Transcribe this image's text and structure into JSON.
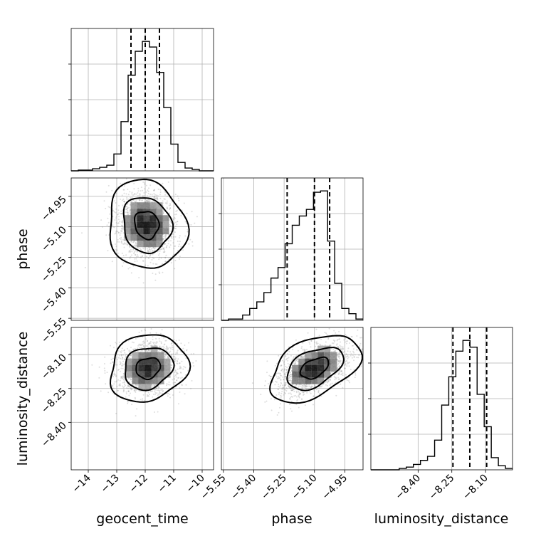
{
  "chart_data": {
    "type": "corner",
    "parameters": [
      "geocent_time",
      "phase",
      "luminosity_distance"
    ],
    "ranges": {
      "geocent_time": [
        -14.6,
        -9.6
      ],
      "phase": [
        -5.56,
        -4.86
      ],
      "luminosity_distance": [
        -8.61,
        -7.98
      ]
    },
    "ticks": {
      "geocent_time": {
        "values": [
          -14,
          -13,
          -12,
          -11,
          -10
        ],
        "labels": [
          "−14",
          "−13",
          "−12",
          "−11",
          "−10"
        ]
      },
      "phase_x": {
        "values": [
          -5.55,
          -5.4,
          -5.25,
          -5.1,
          -4.95
        ],
        "labels": [
          "−5.55",
          "−5.40",
          "−5.25",
          "−5.10",
          "−4.95"
        ]
      },
      "phase_y": {
        "values": [
          -4.95,
          -5.1,
          -5.25,
          -5.4,
          -5.55
        ],
        "labels": [
          "−4.95",
          "−5.10",
          "−5.25",
          "−5.40",
          "−5.55"
        ]
      },
      "luminosity_distance_x": {
        "values": [
          -8.4,
          -8.25,
          -8.1
        ],
        "labels": [
          "−8.40",
          "−8.25",
          "−8.10"
        ]
      },
      "luminosity_distance_y": {
        "values": [
          -8.1,
          -8.25,
          -8.4
        ],
        "labels": [
          "−8.10",
          "−8.25",
          "−8.40"
        ]
      }
    },
    "histograms": [
      {
        "parameter": "geocent_time",
        "bin_edges": [
          -14.6,
          -14.35,
          -14.1,
          -13.85,
          -13.6,
          -13.35,
          -13.1,
          -12.85,
          -12.6,
          -12.35,
          -12.1,
          -11.85,
          -11.6,
          -11.35,
          -11.1,
          -10.85,
          -10.6,
          -10.35,
          -10.1,
          -9.85,
          -9.6
        ],
        "counts": [
          0,
          0.5,
          0.5,
          1.5,
          2.5,
          4,
          12,
          35,
          68,
          85,
          92,
          88,
          70,
          45,
          19,
          6,
          2,
          1,
          0,
          0
        ],
        "quantiles": [
          -12.5,
          -12.0,
          -11.5
        ]
      },
      {
        "parameter": "phase",
        "bin_edges": [
          -5.56,
          -5.525,
          -5.49,
          -5.455,
          -5.42,
          -5.385,
          -5.35,
          -5.315,
          -5.28,
          -5.245,
          -5.21,
          -5.175,
          -5.14,
          -5.105,
          -5.07,
          -5.035,
          -5.0,
          -4.965,
          -4.93,
          -4.895,
          -4.86
        ],
        "counts": [
          0,
          1,
          1,
          4,
          9,
          14,
          21,
          32,
          40,
          58,
          72,
          79,
          84,
          97,
          98,
          60,
          28,
          9,
          5,
          1
        ],
        "quantiles": [
          -5.235,
          -5.1,
          -5.025
        ]
      },
      {
        "parameter": "luminosity_distance",
        "bin_edges": [
          -8.61,
          -8.5785,
          -8.547,
          -8.5155,
          -8.484,
          -8.4525,
          -8.421,
          -8.3895,
          -8.358,
          -8.3265,
          -8.295,
          -8.2635,
          -8.232,
          -8.2005,
          -8.169,
          -8.1375,
          -8.106,
          -8.0745,
          -8.043,
          -8.0115,
          -7.98
        ],
        "counts": [
          0,
          0,
          0,
          0,
          1,
          2,
          4,
          7,
          10,
          22,
          48,
          69,
          88,
          96,
          91,
          56,
          32,
          9,
          3,
          1
        ],
        "quantiles": [
          -8.245,
          -8.17,
          -8.095
        ]
      }
    ],
    "joint_2d": [
      {
        "x": "geocent_time",
        "y": "phase",
        "center": [
          -11.95,
          -5.09
        ],
        "sd": [
          0.55,
          0.088
        ],
        "corr": -0.1
      },
      {
        "x": "geocent_time",
        "y": "luminosity_distance",
        "center": [
          -11.9,
          -8.16
        ],
        "sd": [
          0.55,
          0.06
        ],
        "corr": 0.15
      },
      {
        "x": "phase",
        "y": "luminosity_distance",
        "center": [
          -5.1,
          -8.16
        ],
        "sd": [
          0.09,
          0.06
        ],
        "corr": 0.45
      }
    ],
    "grid": true
  }
}
